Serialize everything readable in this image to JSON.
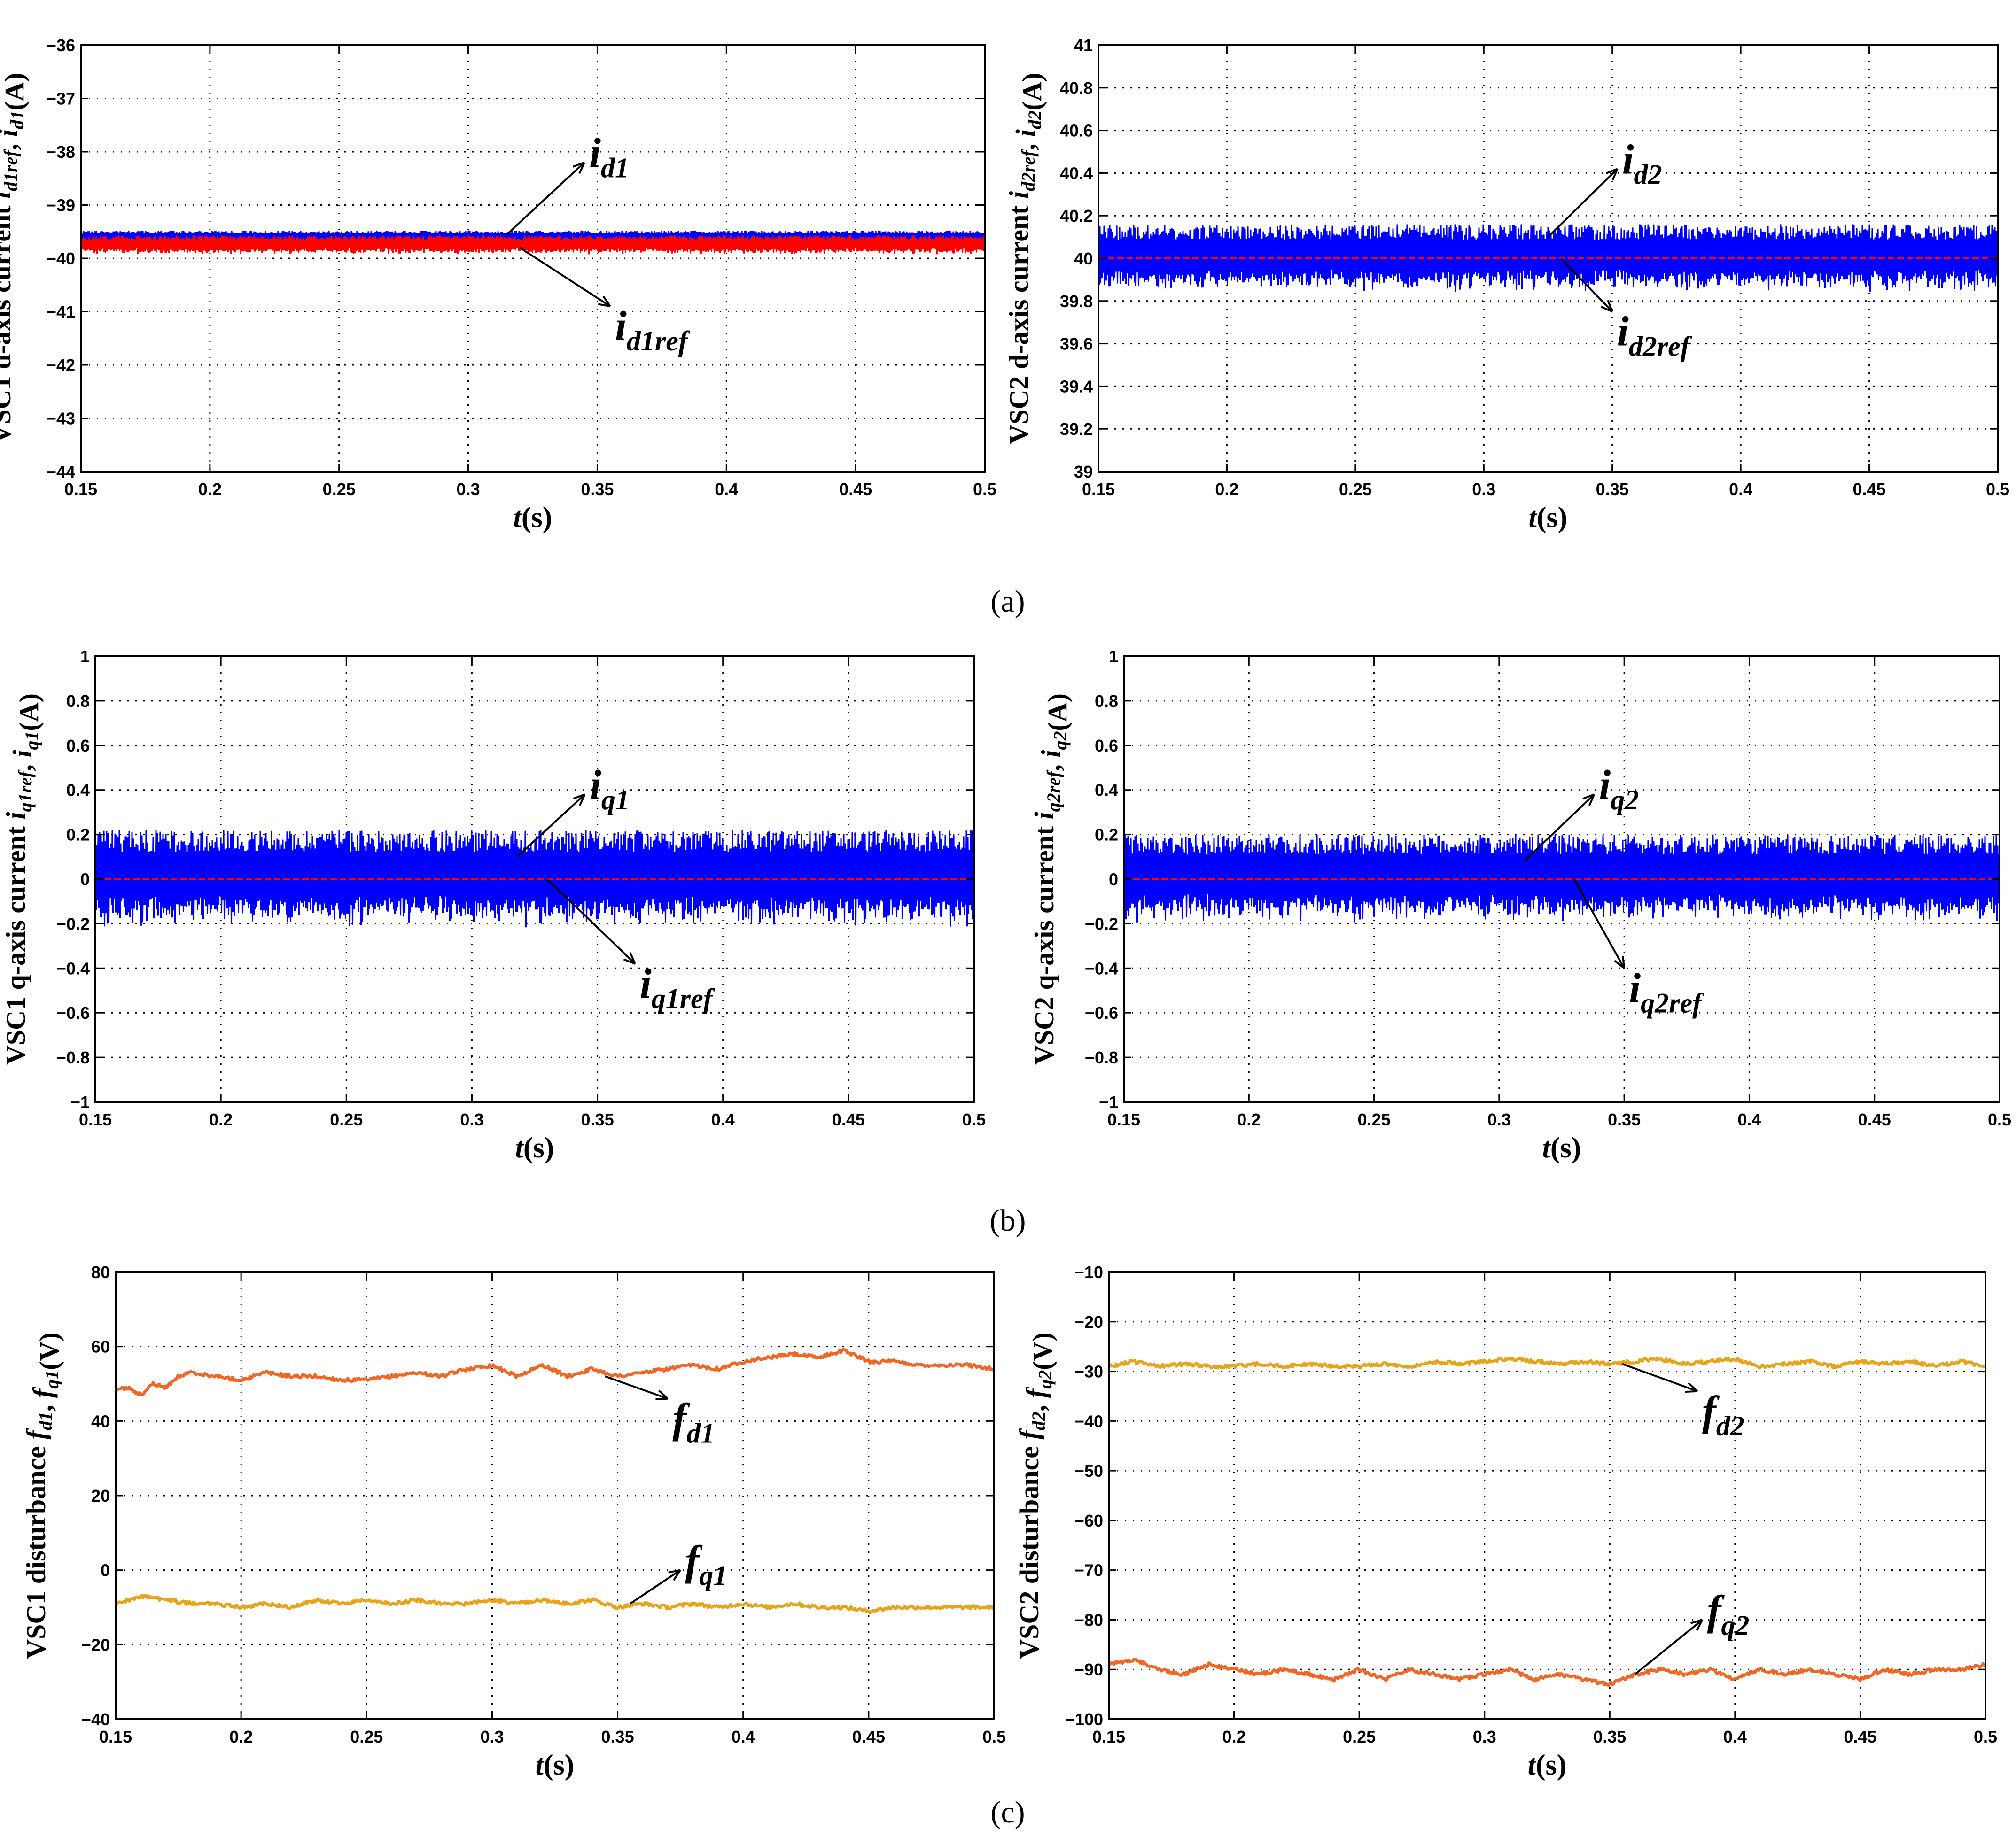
{
  "figure_labels": [
    "(a)",
    "(b)",
    "(c)"
  ],
  "chart_data": [
    {
      "id": "a-left",
      "type": "line",
      "title": "",
      "ylabel_prefix": "VSC1 d-axis current ",
      "ylabel_vars": "i_d1ref,i_d1",
      "ylabel_unit": "(A)",
      "xlabel_var": "t",
      "xlabel_unit": "(s)",
      "xlim": [
        0.15,
        0.5
      ],
      "ylim": [
        -44,
        -36
      ],
      "xticks": [
        0.15,
        0.2,
        0.25,
        0.3,
        0.35,
        0.4,
        0.45,
        0.5
      ],
      "xtick_labels": [
        "0.15",
        "0.2",
        "0.25",
        "0.3",
        "0.35",
        "0.4",
        "0.45",
        "0.5"
      ],
      "yticks": [
        -44,
        -43,
        -42,
        -41,
        -40,
        -39,
        -38,
        -37,
        -36
      ],
      "ytick_labels": [
        "−44",
        "−43",
        "−42",
        "−41",
        "−40",
        "−39",
        "−38",
        "−37",
        "−36"
      ],
      "grid": true,
      "series": [
        {
          "name": "i_d1",
          "color": "#0000FF",
          "center": -39.6,
          "band": 0.12,
          "noise": "fast"
        },
        {
          "name": "i_d1ref",
          "color": "#FF0000",
          "center": -39.75,
          "band": 0.18,
          "noise": "fast"
        }
      ],
      "annotations": [
        {
          "base": "i",
          "sub": "d1",
          "series": "i_d1",
          "from": [
            0.315,
            -39.55
          ],
          "to": [
            0.345,
            -38.2
          ]
        },
        {
          "base": "i",
          "sub": "d1ref",
          "series": "i_d1ref",
          "from": [
            0.32,
            -39.8
          ],
          "to": [
            0.355,
            -40.9
          ]
        }
      ]
    },
    {
      "id": "a-right",
      "type": "line",
      "ylabel_prefix": "VSC2 d-axis current ",
      "ylabel_vars": "i_d2ref,i_d2",
      "ylabel_unit": "(A)",
      "xlabel_var": "t",
      "xlabel_unit": "(s)",
      "xlim": [
        0.15,
        0.5
      ],
      "ylim": [
        39,
        41
      ],
      "xticks": [
        0.15,
        0.2,
        0.25,
        0.3,
        0.35,
        0.4,
        0.45,
        0.5
      ],
      "xtick_labels": [
        "0.15",
        "0.2",
        "0.25",
        "0.3",
        "0.35",
        "0.4",
        "0.45",
        "0.5"
      ],
      "yticks": [
        39,
        39.2,
        39.4,
        39.6,
        39.8,
        40,
        40.2,
        40.4,
        40.6,
        40.8,
        41
      ],
      "ytick_labels": [
        "39",
        "39.2",
        "39.4",
        "39.6",
        "39.8",
        "40",
        "40.2",
        "40.4",
        "40.6",
        "40.8",
        "41"
      ],
      "grid": true,
      "series": [
        {
          "name": "i_d2",
          "color": "#0000FF",
          "center": 40.0,
          "band": 0.16,
          "noise": "fast"
        },
        {
          "name": "i_d2ref",
          "color": "#FF0000",
          "center": 40.0,
          "band": 0.0,
          "noise": "flat"
        }
      ],
      "annotations": [
        {
          "base": "i",
          "sub": "d2",
          "series": "i_d2",
          "from": [
            0.325,
            40.1
          ],
          "to": [
            0.352,
            40.42
          ]
        },
        {
          "base": "i",
          "sub": "d2ref",
          "series": "i_d2ref",
          "from": [
            0.33,
            40.0
          ],
          "to": [
            0.35,
            39.75
          ]
        }
      ]
    },
    {
      "id": "b-left",
      "type": "line",
      "ylabel_prefix": "VSC1 q-axis current ",
      "ylabel_vars": "i_q1ref,i_q1",
      "ylabel_unit": "(A)",
      "xlabel_var": "t",
      "xlabel_unit": "(s)",
      "xlim": [
        0.15,
        0.5
      ],
      "ylim": [
        -1,
        1
      ],
      "xticks": [
        0.15,
        0.2,
        0.25,
        0.3,
        0.35,
        0.4,
        0.45,
        0.5
      ],
      "xtick_labels": [
        "0.15",
        "0.2",
        "0.25",
        "0.3",
        "0.35",
        "0.4",
        "0.45",
        "0.5"
      ],
      "yticks": [
        -1,
        -0.8,
        -0.6,
        -0.4,
        -0.2,
        0,
        0.2,
        0.4,
        0.6,
        0.8,
        1
      ],
      "ytick_labels": [
        "−1",
        "−0.8",
        "−0.6",
        "−0.4",
        "−0.2",
        "0",
        "0.2",
        "0.4",
        "0.6",
        "0.8",
        "1"
      ],
      "grid": true,
      "series": [
        {
          "name": "i_q1",
          "color": "#0000FF",
          "center": 0.0,
          "band": 0.22,
          "noise": "fast"
        },
        {
          "name": "i_q1ref",
          "color": "#FF0000",
          "center": 0.0,
          "band": 0.0,
          "noise": "flat"
        }
      ],
      "annotations": [
        {
          "base": "i",
          "sub": "q1",
          "series": "i_q1",
          "from": [
            0.318,
            0.1
          ],
          "to": [
            0.345,
            0.38
          ]
        },
        {
          "base": "i",
          "sub": "q1ref",
          "series": "i_q1ref",
          "from": [
            0.33,
            0.0
          ],
          "to": [
            0.365,
            -0.38
          ]
        }
      ]
    },
    {
      "id": "b-right",
      "type": "line",
      "ylabel_prefix": "VSC2 q-axis current ",
      "ylabel_vars": "i_q2ref,i_q2",
      "ylabel_unit": "(A)",
      "xlabel_var": "t",
      "xlabel_unit": "(s)",
      "xlim": [
        0.15,
        0.5
      ],
      "ylim": [
        -1,
        1
      ],
      "xticks": [
        0.15,
        0.2,
        0.25,
        0.3,
        0.35,
        0.4,
        0.45,
        0.5
      ],
      "xtick_labels": [
        "0.15",
        "0.2",
        "0.25",
        "0.3",
        "0.35",
        "0.4",
        "0.45",
        "0.5"
      ],
      "yticks": [
        -1,
        -0.8,
        -0.6,
        -0.4,
        -0.2,
        0,
        0.2,
        0.4,
        0.6,
        0.8,
        1
      ],
      "ytick_labels": [
        "−1",
        "−0.8",
        "−0.6",
        "−0.4",
        "−0.2",
        "0",
        "0.2",
        "0.4",
        "0.6",
        "0.8",
        "1"
      ],
      "grid": true,
      "series": [
        {
          "name": "i_q2",
          "color": "#0000FF",
          "center": 0.0,
          "band": 0.2,
          "noise": "fast"
        },
        {
          "name": "i_q2ref",
          "color": "#FF0000",
          "center": 0.0,
          "band": 0.0,
          "noise": "flat"
        }
      ],
      "annotations": [
        {
          "base": "i",
          "sub": "q2",
          "series": "i_q2",
          "from": [
            0.31,
            0.08
          ],
          "to": [
            0.338,
            0.38
          ]
        },
        {
          "base": "i",
          "sub": "q2ref",
          "series": "i_q2ref",
          "from": [
            0.33,
            0.0
          ],
          "to": [
            0.35,
            -0.4
          ]
        }
      ]
    },
    {
      "id": "c-left",
      "type": "line",
      "ylabel_prefix": "VSC1 disturbance ",
      "ylabel_vars": "f_d1,f_q1",
      "ylabel_unit": "(V)",
      "xlabel_var": "t",
      "xlabel_unit": "(s)",
      "xlim": [
        0.15,
        0.5
      ],
      "ylim": [
        -40,
        80
      ],
      "xticks": [
        0.15,
        0.2,
        0.25,
        0.3,
        0.35,
        0.4,
        0.45,
        0.5
      ],
      "xtick_labels": [
        "0.15",
        "0.2",
        "0.25",
        "0.3",
        "0.35",
        "0.4",
        "0.45",
        "0.5"
      ],
      "yticks": [
        -40,
        -20,
        0,
        20,
        40,
        60,
        80
      ],
      "ytick_labels": [
        "−40",
        "−20",
        "0",
        "20",
        "40",
        "60",
        "80"
      ],
      "grid": true,
      "series": [
        {
          "name": "f_d1",
          "color": "#F26522",
          "x": [
            0.15,
            0.155,
            0.16,
            0.165,
            0.17,
            0.175,
            0.18,
            0.19,
            0.2,
            0.21,
            0.22,
            0.23,
            0.24,
            0.25,
            0.26,
            0.27,
            0.28,
            0.29,
            0.3,
            0.31,
            0.32,
            0.33,
            0.34,
            0.35,
            0.36,
            0.37,
            0.38,
            0.39,
            0.4,
            0.41,
            0.42,
            0.43,
            0.44,
            0.45,
            0.46,
            0.47,
            0.48,
            0.49,
            0.5
          ],
          "y": [
            48,
            49,
            47,
            50,
            49,
            52,
            53,
            52,
            51,
            53,
            52,
            52,
            51,
            51,
            52,
            53,
            52,
            54,
            55,
            52,
            55,
            52,
            54,
            52,
            53,
            54,
            55,
            54,
            56,
            57,
            58,
            57,
            59,
            56,
            56,
            55,
            55,
            55,
            54
          ]
        },
        {
          "name": "f_q1",
          "color": "#E8A317",
          "x": [
            0.15,
            0.16,
            0.17,
            0.18,
            0.19,
            0.2,
            0.21,
            0.22,
            0.23,
            0.24,
            0.25,
            0.26,
            0.27,
            0.28,
            0.29,
            0.3,
            0.31,
            0.32,
            0.33,
            0.34,
            0.35,
            0.36,
            0.37,
            0.38,
            0.39,
            0.4,
            0.41,
            0.42,
            0.43,
            0.44,
            0.45,
            0.46,
            0.47,
            0.48,
            0.49,
            0.5
          ],
          "y": [
            -9,
            -7,
            -8,
            -9,
            -9,
            -10,
            -9,
            -10,
            -8,
            -9,
            -8,
            -9,
            -8,
            -9,
            -9,
            -8,
            -9,
            -8,
            -9,
            -8,
            -10,
            -9,
            -10,
            -9,
            -10,
            -9,
            -10,
            -9,
            -10,
            -10,
            -11,
            -10,
            -10,
            -10,
            -10,
            -10
          ]
        }
      ],
      "annotations": [
        {
          "base": "f",
          "sub": "d1",
          "series": "f_d1",
          "from": [
            0.345,
            52
          ],
          "to": [
            0.37,
            46
          ]
        },
        {
          "base": "f",
          "sub": "q1",
          "series": "f_q1",
          "from": [
            0.355,
            -9
          ],
          "to": [
            0.375,
            0
          ]
        }
      ]
    },
    {
      "id": "c-right",
      "type": "line",
      "ylabel_prefix": "VSC2 disturbance ",
      "ylabel_vars": "f_d2,f_q2",
      "ylabel_unit": "(V)",
      "xlabel_var": "t",
      "xlabel_unit": "(s)",
      "xlim": [
        0.15,
        0.5
      ],
      "ylim": [
        -100,
        -10
      ],
      "xticks": [
        0.15,
        0.2,
        0.25,
        0.3,
        0.35,
        0.4,
        0.45,
        0.5
      ],
      "xtick_labels": [
        "0.15",
        "0.2",
        "0.25",
        "0.3",
        "0.35",
        "0.4",
        "0.45",
        "0.5"
      ],
      "yticks": [
        -100,
        -90,
        -80,
        -70,
        -60,
        -50,
        -40,
        -30,
        -20,
        -10
      ],
      "ytick_labels": [
        "−100",
        "−90",
        "−80",
        "−70",
        "−60",
        "−50",
        "−40",
        "−30",
        "−20",
        "−10"
      ],
      "grid": true,
      "series": [
        {
          "name": "f_d2",
          "color": "#E8A317",
          "x": [
            0.15,
            0.16,
            0.17,
            0.18,
            0.19,
            0.2,
            0.21,
            0.22,
            0.23,
            0.24,
            0.25,
            0.26,
            0.27,
            0.28,
            0.29,
            0.3,
            0.31,
            0.32,
            0.33,
            0.34,
            0.35,
            0.36,
            0.37,
            0.38,
            0.39,
            0.4,
            0.41,
            0.42,
            0.43,
            0.44,
            0.45,
            0.46,
            0.47,
            0.48,
            0.49,
            0.5
          ],
          "y": [
            -29,
            -28,
            -29,
            -28.5,
            -29,
            -29,
            -28.5,
            -29,
            -28.5,
            -29,
            -29,
            -28.5,
            -29,
            -28,
            -28.5,
            -28,
            -27.5,
            -28,
            -28.5,
            -28,
            -28.5,
            -28,
            -27.5,
            -28.5,
            -28,
            -27.5,
            -29,
            -28.5,
            -28,
            -29,
            -28,
            -28.5,
            -28,
            -29,
            -28,
            -29
          ]
        },
        {
          "name": "f_q2",
          "color": "#F26522",
          "x": [
            0.15,
            0.16,
            0.17,
            0.18,
            0.19,
            0.2,
            0.21,
            0.22,
            0.23,
            0.24,
            0.25,
            0.26,
            0.27,
            0.28,
            0.29,
            0.3,
            0.31,
            0.32,
            0.33,
            0.34,
            0.35,
            0.36,
            0.37,
            0.38,
            0.39,
            0.4,
            0.41,
            0.42,
            0.43,
            0.44,
            0.45,
            0.46,
            0.47,
            0.48,
            0.49,
            0.5
          ],
          "y": [
            -89,
            -88,
            -90,
            -91,
            -89,
            -90,
            -91,
            -90,
            -91,
            -92,
            -90,
            -92,
            -90,
            -91,
            -92,
            -91,
            -90,
            -92,
            -91,
            -92,
            -93,
            -91,
            -90,
            -91,
            -90,
            -92,
            -90,
            -91,
            -90,
            -91,
            -92,
            -90,
            -91,
            -90,
            -90,
            -89
          ]
        }
      ],
      "annotations": [
        {
          "base": "f",
          "sub": "d2",
          "series": "f_d2",
          "from": [
            0.355,
            -28.5
          ],
          "to": [
            0.385,
            -34
          ]
        },
        {
          "base": "f",
          "sub": "q2",
          "series": "f_q2",
          "from": [
            0.36,
            -91
          ],
          "to": [
            0.387,
            -80
          ]
        }
      ]
    }
  ]
}
